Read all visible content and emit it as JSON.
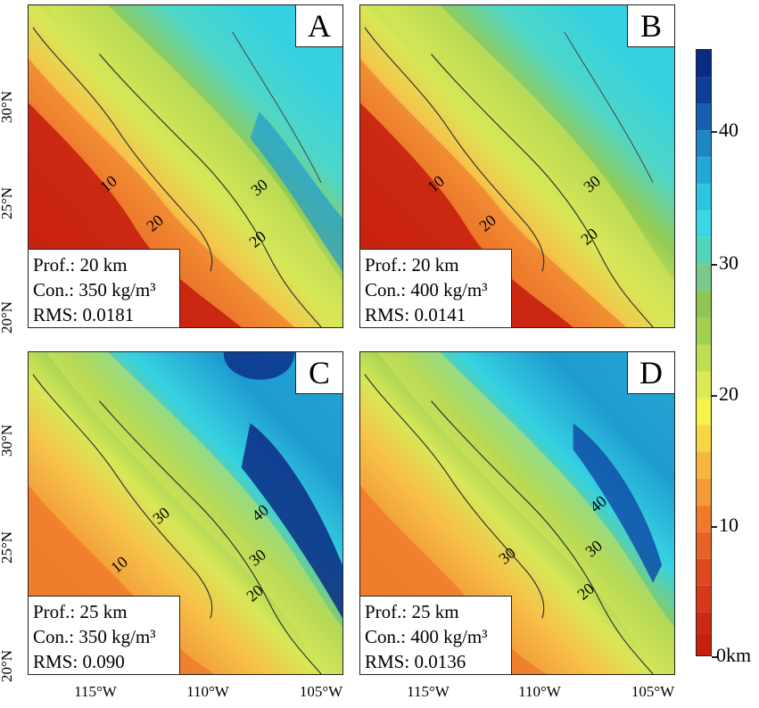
{
  "panels": [
    {
      "letter": "A",
      "depth_label": "Prof.: 20 km",
      "contrast_label": "Con.: 350 kg/m³",
      "rms_label": "RMS: 0.0181",
      "contour_labels": [
        "10",
        "20",
        "30",
        "20"
      ]
    },
    {
      "letter": "B",
      "depth_label": "Prof.: 20 km",
      "contrast_label": "Con.: 400 kg/m³",
      "rms_label": "RMS: 0.0141",
      "contour_labels": [
        "10",
        "20",
        "30",
        "20"
      ]
    },
    {
      "letter": "C",
      "depth_label": "Prof.: 25 km",
      "contrast_label": "Con.: 350 kg/m³",
      "rms_label": "RMS: 0.090",
      "contour_labels": [
        "10",
        "30",
        "40",
        "30",
        "20"
      ]
    },
    {
      "letter": "D",
      "depth_label": "Prof.: 25 km",
      "contrast_label": "Con.: 400 kg/m³",
      "rms_label": "RMS: 0.0136",
      "contour_labels": [
        "30",
        "40",
        "30",
        "20"
      ]
    }
  ],
  "axes": {
    "latitude_ticks": [
      "30°N",
      "25°N",
      "20°N"
    ],
    "longitude_ticks": [
      "115°W",
      "110°W",
      "105°W"
    ]
  },
  "colorbar": {
    "labels": [
      "40",
      "30",
      "20",
      "10",
      "0km"
    ],
    "colors": {
      "deep_red": "#c8200f",
      "red": "#de4a1e",
      "orange": "#ee7b2c",
      "light_orange": "#f6a53e",
      "yellow": "#f5f24a",
      "yellow_green": "#c9e05a",
      "green": "#8dc652",
      "cyan": "#35d9e0",
      "blue": "#1f9bd0",
      "dark_blue": "#0f4fa8",
      "navy": "#0a2a84"
    }
  }
}
